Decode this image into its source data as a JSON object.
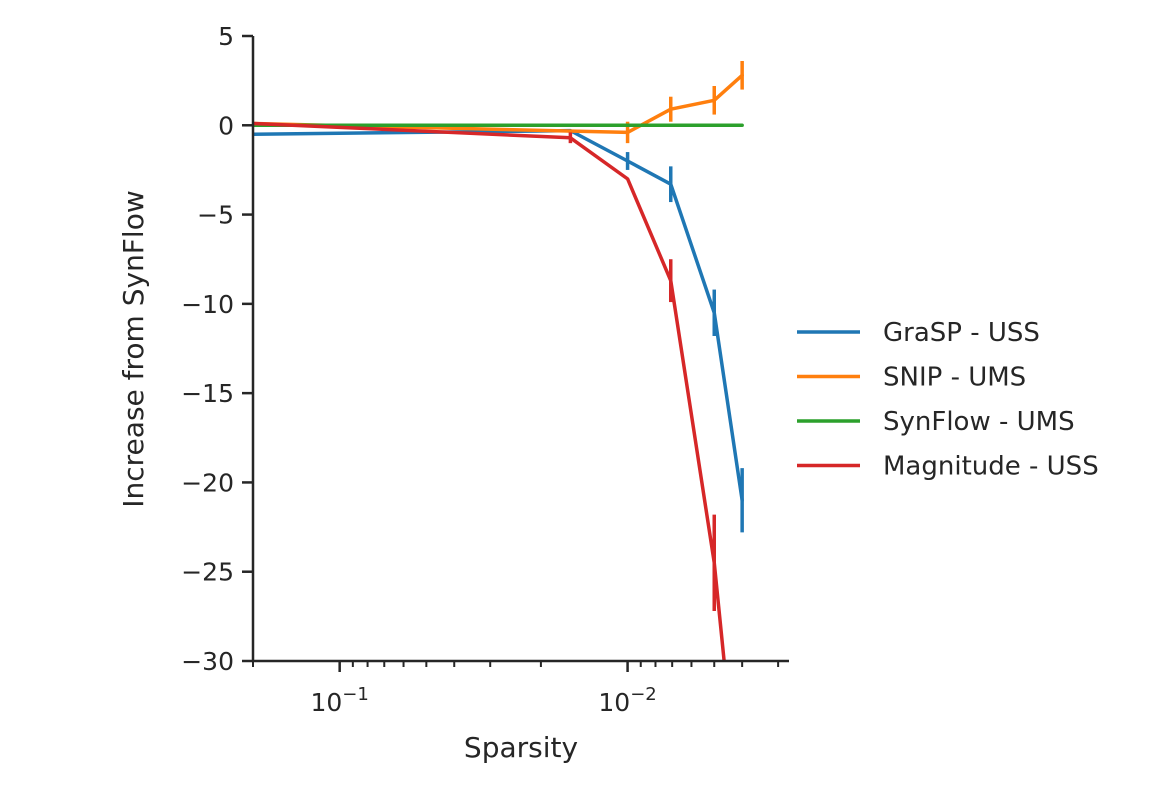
{
  "chart_data": {
    "type": "line",
    "xlabel": "Sparsity",
    "ylabel": "Increase from SynFlow",
    "x_scale": "log",
    "x_reversed": true,
    "xlim": [
      0.2,
      0.00275
    ],
    "ylim": [
      -30,
      5
    ],
    "y_ticks": [
      5,
      0,
      -5,
      -10,
      -15,
      -20,
      -25,
      -30
    ],
    "x_major_ticks": [
      {
        "value": 0.1,
        "base": "10",
        "exp": "−1"
      },
      {
        "value": 0.01,
        "base": "10",
        "exp": "−2"
      }
    ],
    "legend_position": "right",
    "grid": false,
    "series": [
      {
        "name": "GraSP - USS",
        "color": "#1f77b4",
        "x": [
          0.2,
          0.0158,
          0.01,
          0.00708,
          0.005,
          0.004
        ],
        "y": [
          -0.5,
          -0.3,
          -2.0,
          -3.3,
          -10.5,
          -21.0
        ],
        "err": [
          0,
          0,
          0.5,
          1.0,
          1.3,
          1.8
        ]
      },
      {
        "name": "SNIP - UMS",
        "color": "#ff7f0e",
        "x": [
          0.2,
          0.01,
          0.00708,
          0.005,
          0.004
        ],
        "y": [
          0.1,
          -0.4,
          0.9,
          1.4,
          2.8
        ],
        "err": [
          0,
          0.6,
          0.7,
          0.8,
          0.8
        ]
      },
      {
        "name": "SynFlow - UMS",
        "color": "#2ca02c",
        "x": [
          0.2,
          0.004
        ],
        "y": [
          0.0,
          0.0
        ],
        "err": [
          0,
          0
        ]
      },
      {
        "name": "Magnitude - USS",
        "color": "#d62728",
        "x": [
          0.2,
          0.0158,
          0.01,
          0.00708,
          0.005,
          0.00462
        ],
        "y": [
          0.1,
          -0.7,
          -3.0,
          -8.7,
          -24.5,
          -30.0
        ],
        "err": [
          0,
          0.3,
          0,
          1.2,
          2.7,
          0
        ]
      }
    ]
  }
}
